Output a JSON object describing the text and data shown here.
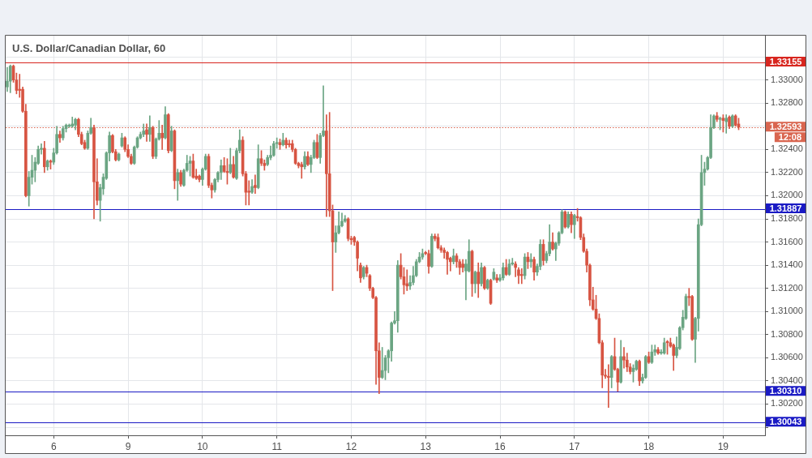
{
  "chart_data": {
    "type": "candlestick",
    "title": "U.S. Dollar/Canadian Dollar, 60",
    "categories": [
      null,
      null,
      null,
      null,
      null,
      null,
      null,
      null,
      null,
      null,
      null,
      null,
      null,
      null,
      null,
      "6",
      null,
      null,
      null,
      null,
      null,
      null,
      null,
      null,
      null,
      null,
      null,
      null,
      null,
      null,
      null,
      null,
      null,
      null,
      null,
      null,
      null,
      null,
      null,
      "9",
      null,
      null,
      null,
      null,
      null,
      null,
      null,
      null,
      null,
      null,
      null,
      null,
      null,
      null,
      null,
      null,
      null,
      null,
      null,
      null,
      null,
      null,
      null,
      "10",
      null,
      null,
      null,
      null,
      null,
      null,
      null,
      null,
      null,
      null,
      null,
      null,
      null,
      null,
      null,
      null,
      null,
      null,
      null,
      null,
      null,
      null,
      null,
      "11",
      null,
      null,
      null,
      null,
      null,
      null,
      null,
      null,
      null,
      null,
      null,
      null,
      null,
      null,
      null,
      null,
      null,
      null,
      null,
      null,
      null,
      null,
      null,
      "12",
      null,
      null,
      null,
      null,
      null,
      null,
      null,
      null,
      null,
      null,
      null,
      null,
      null,
      null,
      null,
      null,
      null,
      null,
      null,
      null,
      null,
      null,
      null,
      "13",
      null,
      null,
      null,
      null,
      null,
      null,
      null,
      null,
      null,
      null,
      null,
      null,
      null,
      null,
      null,
      null,
      null,
      null,
      null,
      null,
      null,
      null,
      null,
      "16",
      null,
      null,
      null,
      null,
      null,
      null,
      null,
      null,
      null,
      null,
      null,
      null,
      null,
      null,
      null,
      null,
      null,
      null,
      null,
      null,
      null,
      null,
      null,
      "17",
      null,
      null,
      null,
      null,
      null,
      null,
      null,
      null,
      null,
      null,
      null,
      null,
      null,
      null,
      null,
      null,
      null,
      null,
      null,
      null,
      null,
      null,
      null,
      "18",
      null,
      null,
      null,
      null,
      null,
      null,
      null,
      null,
      null,
      null,
      null,
      null,
      null,
      null,
      null,
      null,
      null,
      null,
      null,
      null,
      null,
      null,
      null,
      "19",
      null,
      null,
      null,
      null,
      null
    ],
    "ohlc": [
      [
        1.3294,
        1.3311,
        1.329,
        1.3299
      ],
      [
        1.3299,
        1.3313,
        1.3289,
        1.3312
      ],
      [
        1.3312,
        1.3313,
        1.3298,
        1.33
      ],
      [
        1.33,
        1.3306,
        1.3288,
        1.3291
      ],
      [
        1.3292,
        1.3305,
        1.3285,
        1.3291
      ],
      [
        1.3292,
        1.3294,
        1.3272,
        1.3273
      ],
      [
        1.3273,
        1.3279,
        1.3199,
        1.32
      ],
      [
        1.32,
        1.3221,
        1.3191,
        1.3216
      ],
      [
        1.3216,
        1.3235,
        1.321,
        1.3222
      ],
      [
        1.3222,
        1.3233,
        1.3212,
        1.3229
      ],
      [
        1.3228,
        1.3243,
        1.3227,
        1.324
      ],
      [
        1.324,
        1.3245,
        1.3236,
        1.3241
      ],
      [
        1.3241,
        1.3247,
        1.322,
        1.3225
      ],
      [
        1.3225,
        1.3231,
        1.3222,
        1.323
      ],
      [
        1.323,
        1.3231,
        1.3223,
        1.3229
      ],
      [
        1.3229,
        1.3241,
        1.3227,
        1.3237
      ],
      [
        1.3237,
        1.326,
        1.3236,
        1.3253
      ],
      [
        1.3253,
        1.3256,
        1.3246,
        1.325
      ],
      [
        1.325,
        1.326,
        1.3248,
        1.3258
      ],
      [
        1.3258,
        1.3262,
        1.3255,
        1.3261
      ],
      [
        1.326,
        1.3262,
        1.3259,
        1.3261
      ],
      [
        1.326,
        1.3268,
        1.3259,
        1.3262
      ],
      [
        1.3261,
        1.3267,
        1.3257,
        1.3266
      ],
      [
        1.3266,
        1.3267,
        1.3251,
        1.3253
      ],
      [
        1.3253,
        1.3255,
        1.3244,
        1.3245
      ],
      [
        1.3246,
        1.3248,
        1.324,
        1.3241
      ],
      [
        1.3241,
        1.3256,
        1.324,
        1.3254
      ],
      [
        1.3254,
        1.3267,
        1.3253,
        1.3259
      ],
      [
        1.3259,
        1.3261,
        1.318,
        1.3212
      ],
      [
        1.3212,
        1.3232,
        1.3192,
        1.3196
      ],
      [
        1.3196,
        1.321,
        1.3178,
        1.3207
      ],
      [
        1.3206,
        1.3219,
        1.3201,
        1.3216
      ],
      [
        1.3215,
        1.3238,
        1.3214,
        1.3237
      ],
      [
        1.3237,
        1.3255,
        1.323,
        1.3252
      ],
      [
        1.3252,
        1.3253,
        1.3237,
        1.3238
      ],
      [
        1.3238,
        1.324,
        1.323,
        1.3231
      ],
      [
        1.3231,
        1.3237,
        1.323,
        1.3236
      ],
      [
        1.3243,
        1.3254,
        1.3242,
        1.325
      ],
      [
        1.325,
        1.3251,
        1.3238,
        1.324
      ],
      [
        1.324,
        1.3244,
        1.3233,
        1.3234
      ],
      [
        1.3234,
        1.3236,
        1.3227,
        1.3228
      ],
      [
        1.3228,
        1.3243,
        1.3227,
        1.3242
      ],
      [
        1.3242,
        1.3251,
        1.3241,
        1.325
      ],
      [
        1.325,
        1.3255,
        1.3249,
        1.3253
      ],
      [
        1.3253,
        1.3262,
        1.3251,
        1.3256
      ],
      [
        1.3257,
        1.3262,
        1.3247,
        1.3253
      ],
      [
        1.3253,
        1.3269,
        1.3247,
        1.3259
      ],
      [
        1.3259,
        1.326,
        1.3232,
        1.3234
      ],
      [
        1.3234,
        1.325,
        1.3232,
        1.3249
      ],
      [
        1.3249,
        1.3265,
        1.3248,
        1.3254
      ],
      [
        1.3254,
        1.3261,
        1.324,
        1.325
      ],
      [
        1.325,
        1.3277,
        1.3249,
        1.327
      ],
      [
        1.327,
        1.3271,
        1.3237,
        1.3239
      ],
      [
        1.3239,
        1.326,
        1.3238,
        1.3256
      ],
      [
        1.3256,
        1.3257,
        1.3206,
        1.3213
      ],
      [
        1.3213,
        1.3223,
        1.3196,
        1.322
      ],
      [
        1.322,
        1.3222,
        1.3208,
        1.321
      ],
      [
        1.3209,
        1.3223,
        1.3208,
        1.3222
      ],
      [
        1.3222,
        1.3235,
        1.3221,
        1.3228
      ],
      [
        1.3228,
        1.3234,
        1.3217,
        1.323
      ],
      [
        1.323,
        1.3236,
        1.3215,
        1.3216
      ],
      [
        1.3217,
        1.3223,
        1.3214,
        1.3215
      ],
      [
        1.3217,
        1.3218,
        1.3212,
        1.3214
      ],
      [
        1.3214,
        1.3224,
        1.3209,
        1.3223
      ],
      [
        1.3223,
        1.3236,
        1.3222,
        1.3234
      ],
      [
        1.3234,
        1.3236,
        1.3207,
        1.3209
      ],
      [
        1.3209,
        1.3211,
        1.3198,
        1.3205
      ],
      [
        1.3205,
        1.3215,
        1.3203,
        1.3214
      ],
      [
        1.3214,
        1.3221,
        1.3212,
        1.322
      ],
      [
        1.322,
        1.3231,
        1.3214,
        1.3226
      ],
      [
        1.3226,
        1.3233,
        1.322,
        1.3221
      ],
      [
        1.3221,
        1.3232,
        1.321,
        1.322
      ],
      [
        1.322,
        1.3241,
        1.3219,
        1.3227
      ],
      [
        1.3227,
        1.3234,
        1.3215,
        1.3216
      ],
      [
        1.3215,
        1.3241,
        1.3214,
        1.3239
      ],
      [
        1.3239,
        1.3257,
        1.3237,
        1.3248
      ],
      [
        1.3248,
        1.3251,
        1.3217,
        1.3219
      ],
      [
        1.3219,
        1.3221,
        1.3192,
        1.3203
      ],
      [
        1.3204,
        1.3213,
        1.3192,
        1.3203
      ],
      [
        1.3203,
        1.3214,
        1.3202,
        1.3208
      ],
      [
        1.3209,
        1.3218,
        1.3202,
        1.3207
      ],
      [
        1.3207,
        1.3244,
        1.3206,
        1.3232
      ],
      [
        1.3232,
        1.3239,
        1.3226,
        1.3228
      ],
      [
        1.3228,
        1.3231,
        1.3222,
        1.3226
      ],
      [
        1.3227,
        1.3235,
        1.3226,
        1.3233
      ],
      [
        1.3233,
        1.3243,
        1.3231,
        1.3235
      ],
      [
        1.3235,
        1.3247,
        1.3234,
        1.3245
      ],
      [
        1.3245,
        1.325,
        1.3241,
        1.3246
      ],
      [
        1.3246,
        1.3249,
        1.324,
        1.3244
      ],
      [
        1.3244,
        1.3254,
        1.3243,
        1.3248
      ],
      [
        1.3248,
        1.325,
        1.3241,
        1.3244
      ],
      [
        1.3245,
        1.3248,
        1.3242,
        1.3244
      ],
      [
        1.3245,
        1.3248,
        1.3238,
        1.324
      ],
      [
        1.324,
        1.3241,
        1.3227,
        1.3228
      ],
      [
        1.3228,
        1.3229,
        1.3224,
        1.3226
      ],
      [
        1.3227,
        1.3229,
        1.3215,
        1.3225
      ],
      [
        1.3225,
        1.3238,
        1.3223,
        1.3234
      ],
      [
        1.3234,
        1.3238,
        1.3226,
        1.3227
      ],
      [
        1.3227,
        1.3235,
        1.322,
        1.3233
      ],
      [
        1.3233,
        1.3248,
        1.3232,
        1.3246
      ],
      [
        1.3246,
        1.3253,
        1.3232,
        1.3233
      ],
      [
        1.3233,
        1.3254,
        1.3228,
        1.3252
      ],
      [
        1.3252,
        1.3295,
        1.3251,
        1.3256
      ],
      [
        1.3256,
        1.327,
        1.3182,
        1.3219
      ],
      [
        1.3219,
        1.3272,
        1.3182,
        1.3187
      ],
      [
        1.3187,
        1.3192,
        1.3118,
        1.316
      ],
      [
        1.316,
        1.3174,
        1.3151,
        1.3168
      ],
      [
        1.3168,
        1.3186,
        1.3167,
        1.3174
      ],
      [
        1.3174,
        1.3185,
        1.3173,
        1.3178
      ],
      [
        1.3178,
        1.3183,
        1.3177,
        1.318
      ],
      [
        1.318,
        1.3181,
        1.3161,
        1.3163
      ],
      [
        1.3163,
        1.3165,
        1.3158,
        1.3162
      ],
      [
        1.3164,
        1.3165,
        1.3157,
        1.316
      ],
      [
        1.316,
        1.3161,
        1.3135,
        1.3146
      ],
      [
        1.314,
        1.3142,
        1.3125,
        1.3129
      ],
      [
        1.313,
        1.3139,
        1.3128,
        1.3138
      ],
      [
        1.3138,
        1.314,
        1.313,
        1.3133
      ],
      [
        1.3131,
        1.3132,
        1.3118,
        1.312
      ],
      [
        1.312,
        1.3121,
        1.3111,
        1.3112
      ],
      [
        1.3112,
        1.3113,
        1.3037,
        1.3066
      ],
      [
        1.3066,
        1.3073,
        1.3029,
        1.3043
      ],
      [
        1.3043,
        1.3069,
        1.3042,
        1.3049
      ],
      [
        1.3049,
        1.3062,
        1.3041,
        1.306
      ],
      [
        1.306,
        1.3067,
        1.3047,
        1.3066
      ],
      [
        1.3066,
        1.3091,
        1.3057,
        1.309
      ],
      [
        1.309,
        1.31,
        1.3089,
        1.3092
      ],
      [
        1.3092,
        1.3144,
        1.3082,
        1.314
      ],
      [
        1.314,
        1.315,
        1.3128,
        1.313
      ],
      [
        1.313,
        1.3138,
        1.3115,
        1.3123
      ],
      [
        1.3124,
        1.3136,
        1.3118,
        1.3122
      ],
      [
        1.3122,
        1.3131,
        1.3119,
        1.3125
      ],
      [
        1.3125,
        1.3139,
        1.3123,
        1.3131
      ],
      [
        1.3131,
        1.3145,
        1.313,
        1.3143
      ],
      [
        1.3143,
        1.3151,
        1.3142,
        1.3147
      ],
      [
        1.3147,
        1.3154,
        1.3145,
        1.315
      ],
      [
        1.3151,
        1.3152,
        1.3149,
        1.315
      ],
      [
        1.315,
        1.3153,
        1.3133,
        1.3139
      ],
      [
        1.3139,
        1.3167,
        1.3138,
        1.3165
      ],
      [
        1.3165,
        1.3167,
        1.3161,
        1.3163
      ],
      [
        1.3164,
        1.3167,
        1.3154,
        1.3155
      ],
      [
        1.3155,
        1.3157,
        1.3151,
        1.3153
      ],
      [
        1.3153,
        1.3155,
        1.3146,
        1.3151
      ],
      [
        1.3151,
        1.3152,
        1.3132,
        1.3145
      ],
      [
        1.3146,
        1.3147,
        1.3135,
        1.3143
      ],
      [
        1.3143,
        1.3154,
        1.3141,
        1.3148
      ],
      [
        1.3148,
        1.315,
        1.3138,
        1.3143
      ],
      [
        1.3143,
        1.3145,
        1.3132,
        1.3138
      ],
      [
        1.3141,
        1.3145,
        1.3134,
        1.3138
      ],
      [
        1.3135,
        1.3145,
        1.311,
        1.3141
      ],
      [
        1.3135,
        1.3162,
        1.3134,
        1.3152
      ],
      [
        1.3152,
        1.3153,
        1.3113,
        1.3124
      ],
      [
        1.3124,
        1.3135,
        1.3116,
        1.3134
      ],
      [
        1.3134,
        1.3142,
        1.3112,
        1.3124
      ],
      [
        1.3124,
        1.3142,
        1.3122,
        1.3138
      ],
      [
        1.3138,
        1.3139,
        1.3119,
        1.312
      ],
      [
        1.312,
        1.3128,
        1.3119,
        1.3127
      ],
      [
        1.3127,
        1.3128,
        1.3106,
        1.3107
      ],
      [
        1.3128,
        1.3137,
        1.3127,
        1.3134
      ],
      [
        1.3129,
        1.3132,
        1.3125,
        1.3127
      ],
      [
        1.3127,
        1.3132,
        1.3126,
        1.3129
      ],
      [
        1.3129,
        1.3142,
        1.3127,
        1.3138
      ],
      [
        1.3138,
        1.3145,
        1.3131,
        1.3132
      ],
      [
        1.3132,
        1.3145,
        1.3131,
        1.3141
      ],
      [
        1.3141,
        1.3146,
        1.314,
        1.3142
      ],
      [
        1.3141,
        1.3143,
        1.313,
        1.3138
      ],
      [
        1.3136,
        1.3138,
        1.3124,
        1.3131
      ],
      [
        1.3132,
        1.3137,
        1.3124,
        1.3131
      ],
      [
        1.3131,
        1.315,
        1.3128,
        1.3147
      ],
      [
        1.3147,
        1.3151,
        1.3137,
        1.3143
      ],
      [
        1.3143,
        1.315,
        1.3138,
        1.3145
      ],
      [
        1.3145,
        1.3147,
        1.3127,
        1.3134
      ],
      [
        1.3134,
        1.3141,
        1.3131,
        1.3139
      ],
      [
        1.3139,
        1.3162,
        1.3136,
        1.3158
      ],
      [
        1.3158,
        1.3162,
        1.314,
        1.3144
      ],
      [
        1.3144,
        1.3152,
        1.3142,
        1.315
      ],
      [
        1.315,
        1.3175,
        1.3148,
        1.316
      ],
      [
        1.316,
        1.3168,
        1.3153,
        1.3154
      ],
      [
        1.3154,
        1.316,
        1.3144,
        1.3159
      ],
      [
        1.3159,
        1.3169,
        1.3157,
        1.3168
      ],
      [
        1.3168,
        1.3188,
        1.3167,
        1.3186
      ],
      [
        1.3186,
        1.3187,
        1.3172,
        1.3173
      ],
      [
        1.3173,
        1.3186,
        1.3172,
        1.3184
      ],
      [
        1.3184,
        1.3186,
        1.3168,
        1.3175
      ],
      [
        1.3175,
        1.3184,
        1.3163,
        1.3183
      ],
      [
        1.3182,
        1.3189,
        1.3178,
        1.3181
      ],
      [
        1.3181,
        1.3182,
        1.3162,
        1.3164
      ],
      [
        1.3164,
        1.3167,
        1.3151,
        1.3152
      ],
      [
        1.3152,
        1.3154,
        1.3134,
        1.314
      ],
      [
        1.314,
        1.3141,
        1.3105,
        1.311
      ],
      [
        1.311,
        1.3121,
        1.3101,
        1.3102
      ],
      [
        1.3102,
        1.3114,
        1.3093,
        1.3094
      ],
      [
        1.3094,
        1.3098,
        1.3072,
        1.3073
      ],
      [
        1.3073,
        1.3075,
        1.3034,
        1.3045
      ],
      [
        1.3045,
        1.305,
        1.3042,
        1.3044
      ],
      [
        1.3044,
        1.3054,
        1.3017,
        1.3043
      ],
      [
        1.3043,
        1.3062,
        1.3034,
        1.3061
      ],
      [
        1.3061,
        1.3077,
        1.3049,
        1.305
      ],
      [
        1.305,
        1.3051,
        1.3031,
        1.3039
      ],
      [
        1.3039,
        1.3075,
        1.3038,
        1.3061
      ],
      [
        1.3061,
        1.3069,
        1.3051,
        1.3058
      ],
      [
        1.3058,
        1.3064,
        1.3048,
        1.3052
      ],
      [
        1.3052,
        1.3055,
        1.3046,
        1.3048
      ],
      [
        1.3048,
        1.3054,
        1.3039,
        1.3051
      ],
      [
        1.305,
        1.3058,
        1.3049,
        1.3057
      ],
      [
        1.3057,
        1.3058,
        1.3036,
        1.304
      ],
      [
        1.304,
        1.3046,
        1.3038,
        1.3043
      ],
      [
        1.3043,
        1.3062,
        1.3042,
        1.3061
      ],
      [
        1.3061,
        1.3065,
        1.3055,
        1.3056
      ],
      [
        1.3056,
        1.3071,
        1.3055,
        1.3065
      ],
      [
        1.3065,
        1.3071,
        1.3062,
        1.3067
      ],
      [
        1.3067,
        1.3069,
        1.3063,
        1.3064
      ],
      [
        1.3064,
        1.3067,
        1.3063,
        1.3065
      ],
      [
        1.3064,
        1.3077,
        1.3063,
        1.3073
      ],
      [
        1.3074,
        1.3075,
        1.3063,
        1.3073
      ],
      [
        1.3073,
        1.3077,
        1.3069,
        1.307
      ],
      [
        1.3071,
        1.3072,
        1.3049,
        1.3062
      ],
      [
        1.3062,
        1.3078,
        1.306,
        1.3069
      ],
      [
        1.3068,
        1.3087,
        1.3067,
        1.3086
      ],
      [
        1.3086,
        1.3101,
        1.3084,
        1.3095
      ],
      [
        1.3094,
        1.3115,
        1.3093,
        1.3113
      ],
      [
        1.3113,
        1.312,
        1.3105,
        1.3112
      ],
      [
        1.3113,
        1.3114,
        1.3075,
        1.3076
      ],
      [
        1.3076,
        1.3095,
        1.3056,
        1.3094
      ],
      [
        1.3094,
        1.318,
        1.3083,
        1.3175
      ],
      [
        1.3175,
        1.3235,
        1.3174,
        1.322
      ],
      [
        1.322,
        1.3229,
        1.3209,
        1.3223
      ],
      [
        1.3223,
        1.3234,
        1.3222,
        1.3233
      ],
      [
        1.3233,
        1.327,
        1.3232,
        1.3259
      ],
      [
        1.3259,
        1.327,
        1.3258,
        1.3269
      ],
      [
        1.3269,
        1.3272,
        1.3264,
        1.3266
      ],
      [
        1.3266,
        1.3268,
        1.3257,
        1.3267
      ],
      [
        1.3267,
        1.327,
        1.3255,
        1.3265
      ],
      [
        1.3264,
        1.327,
        1.3254,
        1.3267
      ],
      [
        1.3268,
        1.3269,
        1.3258,
        1.326
      ],
      [
        1.326,
        1.327,
        1.3259,
        1.3269
      ],
      [
        1.3269,
        1.327,
        1.326,
        1.3261
      ],
      [
        1.3262,
        1.3267,
        1.3257,
        1.32593
      ]
    ],
    "colors": [
      "#6ba583",
      "#6ba583",
      "#d75442",
      "#d75442",
      "#d75442",
      "#d75442",
      "#d75442",
      "#6ba583",
      "#6ba583",
      "#6ba583",
      "#6ba583",
      "#6ba583",
      "#d75442",
      "#6ba583",
      "#d75442",
      "#6ba583",
      "#6ba583",
      "#d75442",
      "#6ba583",
      "#6ba583",
      "#6ba583",
      "#6ba583",
      "#6ba583",
      "#d75442",
      "#d75442",
      "#d75442",
      "#6ba583",
      "#6ba583",
      "#d75442",
      "#d75442",
      "#6ba583",
      "#6ba583",
      "#6ba583",
      "#6ba583",
      "#d75442",
      "#d75442",
      "#6ba583",
      "#6ba583",
      "#d75442",
      "#d75442",
      "#d75442",
      "#6ba583",
      "#6ba583",
      "#6ba583",
      "#6ba583",
      "#d75442",
      "#6ba583",
      "#d75442",
      "#6ba583",
      "#6ba583",
      "#d75442",
      "#6ba583",
      "#d75442",
      "#6ba583",
      "#d75442",
      "#6ba583",
      "#d75442",
      "#6ba583",
      "#6ba583",
      "#6ba583",
      "#d75442",
      "#d75442",
      "#d75442",
      "#6ba583",
      "#6ba583",
      "#d75442",
      "#d75442",
      "#6ba583",
      "#6ba583",
      "#6ba583",
      "#d75442",
      "#d75442",
      "#6ba583",
      "#d75442",
      "#6ba583",
      "#6ba583",
      "#d75442",
      "#d75442",
      "#d75442",
      "#6ba583",
      "#d75442",
      "#6ba583",
      "#d75442",
      "#d75442",
      "#6ba583",
      "#6ba583",
      "#6ba583",
      "#6ba583",
      "#d75442",
      "#6ba583",
      "#d75442",
      "#d75442",
      "#d75442",
      "#d75442",
      "#d75442",
      "#d75442",
      "#6ba583",
      "#d75442",
      "#6ba583",
      "#6ba583",
      "#d75442",
      "#6ba583",
      "#6ba583",
      "#d75442",
      "#d75442",
      "#d75442",
      "#6ba583",
      "#6ba583",
      "#6ba583",
      "#6ba583",
      "#d75442",
      "#d75442",
      "#d75442",
      "#d75442",
      "#d75442",
      "#6ba583",
      "#d75442",
      "#d75442",
      "#d75442",
      "#d75442",
      "#d75442",
      "#6ba583",
      "#6ba583",
      "#6ba583",
      "#6ba583",
      "#6ba583",
      "#6ba583",
      "#d75442",
      "#d75442",
      "#d75442",
      "#6ba583",
      "#6ba583",
      "#6ba583",
      "#6ba583",
      "#6ba583",
      "#d75442",
      "#d75442",
      "#6ba583",
      "#d75442",
      "#d75442",
      "#d75442",
      "#d75442",
      "#d75442",
      "#d75442",
      "#6ba583",
      "#d75442",
      "#d75442",
      "#d75442",
      "#6ba583",
      "#6ba583",
      "#d75442",
      "#6ba583",
      "#d75442",
      "#6ba583",
      "#d75442",
      "#6ba583",
      "#d75442",
      "#6ba583",
      "#d75442",
      "#6ba583",
      "#6ba583",
      "#d75442",
      "#6ba583",
      "#6ba583",
      "#d75442",
      "#d75442",
      "#d75442",
      "#6ba583",
      "#d75442",
      "#6ba583",
      "#d75442",
      "#6ba583",
      "#6ba583",
      "#d75442",
      "#6ba583",
      "#6ba583",
      "#d75442",
      "#6ba583",
      "#6ba583",
      "#6ba583",
      "#d75442",
      "#6ba583",
      "#d75442",
      "#6ba583",
      "#d75442",
      "#d75442",
      "#d75442",
      "#d75442",
      "#d75442",
      "#d75442",
      "#d75442",
      "#d75442",
      "#d75442",
      "#d75442",
      "#d75442",
      "#6ba583",
      "#d75442",
      "#d75442",
      "#6ba583",
      "#d75442",
      "#d75442",
      "#d75442",
      "#6ba583",
      "#6ba583",
      "#d75442",
      "#6ba583",
      "#6ba583",
      "#d75442",
      "#6ba583",
      "#6ba583",
      "#d75442",
      "#6ba583",
      "#6ba583",
      "#d75442",
      "#d75442",
      "#d75442",
      "#6ba583",
      "#6ba583",
      "#6ba583",
      "#6ba583",
      "#d75442",
      "#d75442",
      "#6ba583",
      "#6ba583",
      "#6ba583",
      "#6ba583",
      "#6ba583",
      "#6ba583",
      "#6ba583",
      "#d75442",
      "#6ba583",
      "#d75442",
      "#6ba583",
      "#d75442",
      "#6ba583",
      "#d75442",
      "#d75442"
    ],
    "ylim": [
      1.2993,
      1.3339
    ],
    "yticks": [
      {
        "value": 1.3,
        "label": null
      },
      {
        "value": 1.302,
        "label": "1.30200"
      },
      {
        "value": 1.304,
        "label": "1.30400"
      },
      {
        "value": 1.306,
        "label": "1.30600"
      },
      {
        "value": 1.308,
        "label": "1.30800"
      },
      {
        "value": 1.31,
        "label": "1.31000"
      },
      {
        "value": 1.312,
        "label": "1.31200"
      },
      {
        "value": 1.314,
        "label": "1.31400"
      },
      {
        "value": 1.316,
        "label": "1.31600"
      },
      {
        "value": 1.318,
        "label": "1.31800"
      },
      {
        "value": 1.32,
        "label": "1.32000"
      },
      {
        "value": 1.322,
        "label": "1.32200"
      },
      {
        "value": 1.324,
        "label": "1.32400"
      },
      {
        "value": 1.326,
        "label": null
      },
      {
        "value": 1.328,
        "label": "1.32800"
      },
      {
        "value": 1.33,
        "label": "1.33000"
      },
      {
        "value": 1.332,
        "label": null
      }
    ],
    "grid": true,
    "ref_lines": [
      {
        "axis": "y",
        "value": 1.33155,
        "label": "1.33155",
        "color": "#d8261f"
      },
      {
        "axis": "y",
        "value": 1.32593,
        "label": "1.32593",
        "color": "#d9654f",
        "line_style": "dotted"
      },
      {
        "axis": "y",
        "value": 1.31887,
        "label": "1.31887",
        "color": "#1a1ac4"
      },
      {
        "axis": "y",
        "value": 1.3031,
        "label": "1.30310",
        "color": "#1a1ac4"
      },
      {
        "axis": "y",
        "value": 1.30043,
        "label": "1.30043",
        "color": "#1a1ac4"
      }
    ],
    "annotations": [
      "12:08"
    ]
  }
}
